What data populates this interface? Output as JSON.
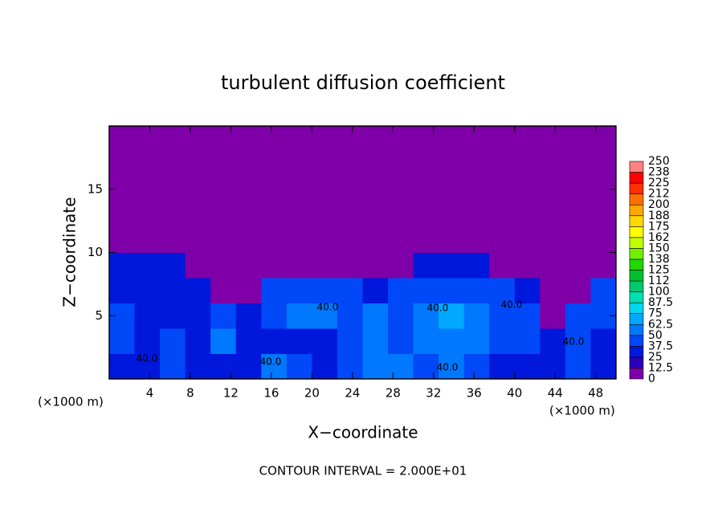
{
  "chart_data": {
    "type": "heatmap",
    "title": "turbulent diffusion coefficient",
    "xlabel": "X−coordinate",
    "ylabel": "Z−coordinate",
    "x_unit_labels": [
      "(×1000 m)",
      "(×1000 m)"
    ],
    "footer": "CONTOUR INTERVAL = 2.000E+01",
    "xlim": [
      0,
      50
    ],
    "ylim": [
      0,
      20
    ],
    "xticks": [
      4,
      8,
      12,
      16,
      20,
      24,
      28,
      32,
      36,
      40,
      44,
      48
    ],
    "yticks": [
      5,
      10,
      15
    ],
    "xbins": [
      0,
      2.5,
      5,
      7.5,
      10,
      12.5,
      15,
      17.5,
      20,
      22.5,
      25,
      27.5,
      30,
      32.5,
      35,
      37.5,
      40,
      42.5,
      45,
      47.5,
      50
    ],
    "ybins": [
      0,
      2,
      4,
      6,
      8,
      10,
      12,
      14,
      16,
      18,
      20
    ],
    "values": [
      [
        30,
        35,
        45,
        30,
        30,
        35,
        55,
        40,
        35,
        45,
        60,
        55,
        45,
        60,
        40,
        30,
        35,
        30,
        45,
        35
      ],
      [
        40,
        30,
        40,
        30,
        50,
        30,
        30,
        25,
        35,
        40,
        55,
        40,
        50,
        60,
        55,
        45,
        40,
        30,
        40,
        35
      ],
      [
        45,
        30,
        30,
        30,
        40,
        35,
        45,
        55,
        55,
        45,
        50,
        45,
        60,
        65,
        55,
        40,
        45,
        10,
        40,
        45
      ],
      [
        35,
        30,
        30,
        35,
        10,
        10,
        40,
        45,
        45,
        40,
        35,
        40,
        40,
        45,
        40,
        40,
        35,
        10,
        10,
        40
      ],
      [
        30,
        25,
        25,
        5,
        5,
        5,
        5,
        5,
        5,
        5,
        5,
        5,
        30,
        30,
        30,
        5,
        5,
        5,
        5,
        5
      ],
      [
        5,
        5,
        5,
        5,
        5,
        5,
        5,
        5,
        5,
        5,
        5,
        5,
        5,
        5,
        5,
        5,
        5,
        5,
        5,
        5
      ],
      [
        5,
        5,
        5,
        5,
        5,
        5,
        5,
        5,
        5,
        5,
        5,
        5,
        5,
        5,
        5,
        5,
        5,
        5,
        5,
        5
      ],
      [
        5,
        5,
        5,
        5,
        5,
        5,
        5,
        5,
        5,
        5,
        5,
        5,
        5,
        5,
        5,
        5,
        5,
        5,
        5,
        5
      ],
      [
        5,
        5,
        5,
        5,
        5,
        5,
        5,
        5,
        5,
        5,
        5,
        5,
        5,
        5,
        5,
        5,
        5,
        5,
        5,
        5
      ],
      [
        5,
        5,
        5,
        5,
        5,
        5,
        5,
        5,
        5,
        5,
        5,
        5,
        5,
        5,
        5,
        5,
        5,
        5,
        5,
        5
      ]
    ],
    "colorbar": {
      "levels": [
        0,
        12.5,
        25,
        37.5,
        50,
        62.5,
        75,
        87.5,
        100,
        112,
        125,
        138,
        150,
        162,
        175,
        188,
        200,
        212,
        225,
        238,
        250
      ],
      "colors": [
        "#7f00a8",
        "#2a00b8",
        "#0018dc",
        "#0048f8",
        "#0078ff",
        "#00a8ff",
        "#00d8f0",
        "#00e0b0",
        "#00c870",
        "#00c030",
        "#20d800",
        "#70f000",
        "#c0ff00",
        "#ffff00",
        "#ffd800",
        "#ffa800",
        "#ff7000",
        "#ff3000",
        "#ff0000",
        "#ff8080"
      ]
    },
    "contour_labels": [
      "40.0",
      "40.0",
      "40.0",
      "40.0",
      "40.0",
      "40.0",
      "40.0"
    ]
  }
}
